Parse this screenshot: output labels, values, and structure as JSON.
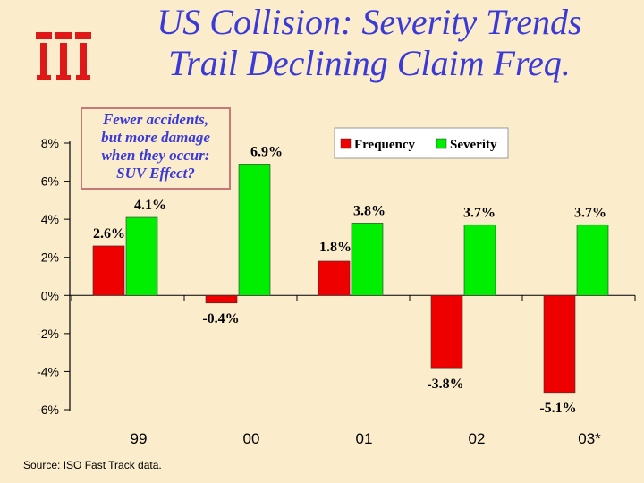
{
  "title_line1": "US Collision: Severity Trends",
  "title_line2": "Trail Declining Claim Freq.",
  "logo_text": "iii",
  "callout_lines": [
    "Fewer accidents,",
    "but more damage",
    "when they occur:",
    "SUV Effect?"
  ],
  "source": "Source: ISO Fast Track data.",
  "colors": {
    "frequency": "#ee0000",
    "severity": "#00ee00",
    "title": "#3a3ad8",
    "logo": "#e01818"
  },
  "chart_data": {
    "type": "bar",
    "title": "US Collision: Severity Trends Trail Declining Claim Freq.",
    "categories": [
      "99",
      "00",
      "01",
      "02",
      "03*"
    ],
    "series": [
      {
        "name": "Frequency",
        "values": [
          2.6,
          -0.4,
          1.8,
          -3.8,
          -5.1
        ],
        "labels": [
          "2.6%",
          "-0.4%",
          "1.8%",
          "-3.8%",
          "-5.1%"
        ]
      },
      {
        "name": "Severity",
        "values": [
          4.1,
          6.9,
          3.8,
          3.7,
          3.7
        ],
        "labels": [
          "4.1%",
          "6.9%",
          "3.8%",
          "3.7%",
          "3.7%"
        ]
      }
    ],
    "ylim": [
      -6,
      8
    ],
    "yticks": [
      8,
      6,
      4,
      2,
      0,
      -2,
      -4,
      -6
    ],
    "ytick_labels": [
      "8%",
      "6%",
      "4%",
      "2%",
      "0%",
      "-2%",
      "-4%",
      "-6%"
    ],
    "xlabel": "",
    "ylabel": "",
    "legend_position": "top-right"
  }
}
